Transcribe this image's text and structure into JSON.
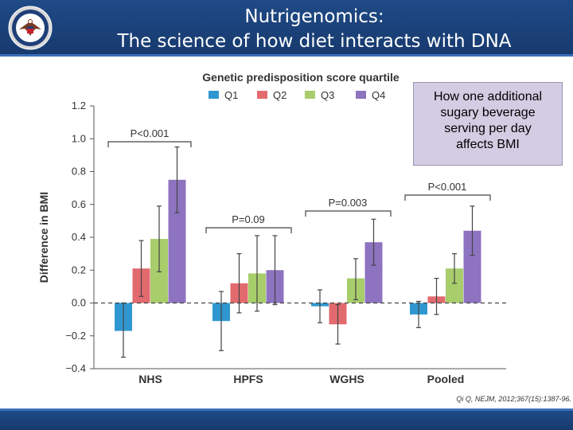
{
  "header": {
    "title_line1": "Nutrigenomics:",
    "title_line2": "The science of how diet interacts with DNA"
  },
  "callout": {
    "line1": "How one additional",
    "line2": "sugary beverage",
    "line3": "serving per day",
    "line4": "affects BMI"
  },
  "citation": "Qi Q, NEJM, 2012;367(15):1387-96.",
  "colors": {
    "header_bg": "#1f4a86",
    "Q1": "#2f97d0",
    "Q2": "#e26a6e",
    "Q3": "#a8cd6b",
    "Q4": "#8d73c0",
    "callout_bg": "#d3cce3"
  },
  "chart_data": {
    "type": "bar",
    "title": "Genetic predisposition score quartile",
    "xlabel": "",
    "ylabel": "Difference in BMI",
    "ylim": [
      -0.4,
      1.2
    ],
    "yticks": [
      -0.4,
      -0.2,
      0.0,
      0.2,
      0.4,
      0.6,
      0.8,
      1.0,
      1.2
    ],
    "ytick_labels": [
      "−0.4",
      "−0.2",
      "0.0",
      "0.2",
      "0.4",
      "0.6",
      "0.8",
      "1.0",
      "1.2"
    ],
    "categories": [
      "NHS",
      "HPFS",
      "WGHS",
      "Pooled"
    ],
    "series": [
      {
        "name": "Q1",
        "color": "#2f97d0",
        "values": [
          -0.17,
          -0.11,
          -0.02,
          -0.07
        ],
        "lower": [
          -0.33,
          -0.29,
          -0.12,
          -0.15
        ],
        "upper": [
          0.0,
          0.07,
          0.08,
          0.01
        ]
      },
      {
        "name": "Q2",
        "color": "#e26a6e",
        "values": [
          0.21,
          0.12,
          -0.13,
          0.04
        ],
        "lower": [
          0.04,
          -0.06,
          -0.25,
          -0.07
        ],
        "upper": [
          0.38,
          0.3,
          -0.01,
          0.15
        ]
      },
      {
        "name": "Q3",
        "color": "#a8cd6b",
        "values": [
          0.39,
          0.18,
          0.15,
          0.21
        ],
        "lower": [
          0.19,
          -0.05,
          0.02,
          0.12
        ],
        "upper": [
          0.59,
          0.41,
          0.27,
          0.3
        ]
      },
      {
        "name": "Q4",
        "color": "#8d73c0",
        "values": [
          0.75,
          0.2,
          0.37,
          0.44
        ],
        "lower": [
          0.55,
          -0.01,
          0.23,
          0.29
        ],
        "upper": [
          0.95,
          0.41,
          0.51,
          0.59
        ]
      }
    ],
    "annotations": [
      "P<0.001",
      "P=0.09",
      "P=0.003",
      "P<0.001"
    ],
    "reference_line": 0.0
  }
}
